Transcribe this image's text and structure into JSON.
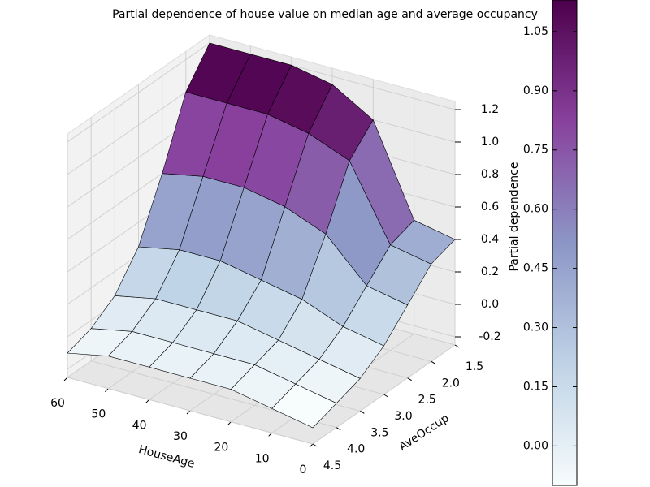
{
  "chart_data": {
    "type": "surface",
    "title": "Partial dependence of house value on median age and average occupancy",
    "xlabel": "HouseAge",
    "ylabel": "AveOccup",
    "zlabel": "Partial dependence",
    "x": [
      0,
      10,
      20,
      30,
      40,
      50,
      60
    ],
    "y": [
      1.5,
      2.0,
      2.5,
      3.0,
      3.5,
      4.0,
      4.5
    ],
    "z": [
      [
        0.4,
        0.45,
        1.0,
        1.15,
        1.2,
        1.2,
        1.2
      ],
      [
        0.35,
        0.4,
        0.85,
        0.95,
        1.0,
        1.0,
        1.0
      ],
      [
        0.2,
        0.25,
        0.5,
        0.6,
        0.65,
        0.65,
        0.6
      ],
      [
        0.05,
        0.1,
        0.2,
        0.25,
        0.3,
        0.3,
        0.25
      ],
      [
        -0.05,
        0,
        0.05,
        0.1,
        0.1,
        0.1,
        0.05
      ],
      [
        -0.1,
        -0.05,
        0,
        0,
        0,
        0,
        -0.05
      ],
      [
        -0.15,
        -0.1,
        -0.05,
        -0.05,
        -0.05,
        -0.05,
        -0.1
      ]
    ],
    "xlim": [
      0,
      60
    ],
    "xticks": [
      0,
      10,
      20,
      30,
      40,
      50,
      60
    ],
    "ylim": [
      1.5,
      4.5
    ],
    "yticks": [
      1.5,
      {
        "value": 2,
        "label": "2.0"
      },
      2.5,
      {
        "value": 3,
        "label": "3.0"
      },
      3.5,
      {
        "value": 4,
        "label": "4.0"
      },
      4.5
    ],
    "zlim": [
      -0.25,
      1.25
    ],
    "zticks": [
      -0.2,
      {
        "value": 0,
        "label": "0.0"
      },
      0.2,
      0.4,
      0.6,
      0.8,
      {
        "value": 1,
        "label": "1.0"
      },
      1.2
    ],
    "colormap": [
      "#f7fcfd",
      "#bfd3e6",
      "#8c96c6",
      "#88419d",
      "#4d004b"
    ],
    "clim": [
      -0.1,
      1.13
    ],
    "cticks": [
      {
        "value": 0,
        "label": "0.00"
      },
      {
        "value": 0.15,
        "label": "0.15"
      },
      {
        "value": 0.3,
        "label": "0.30"
      },
      {
        "value": 0.45,
        "label": "0.45"
      },
      {
        "value": 0.6,
        "label": "0.60"
      },
      {
        "value": 0.75,
        "label": "0.75"
      },
      {
        "value": 0.9,
        "label": "0.90"
      },
      {
        "value": 1.05,
        "label": "1.05"
      }
    ]
  }
}
